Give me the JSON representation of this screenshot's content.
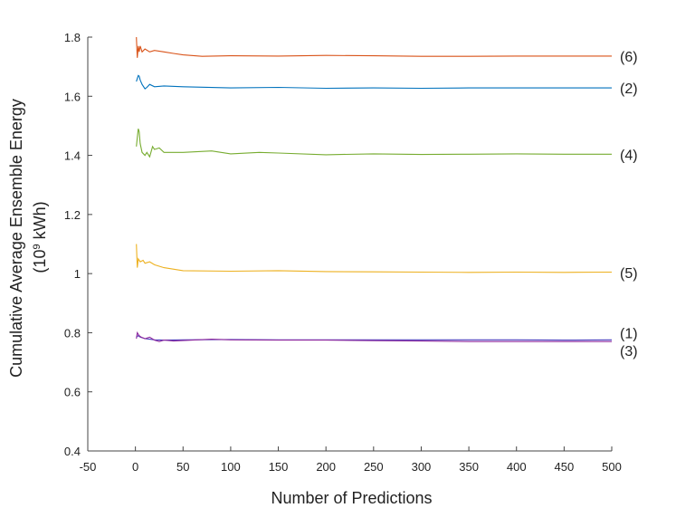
{
  "chart_data": {
    "type": "line",
    "title": "",
    "xlabel": "Number of Predictions",
    "ylabel_line1": "Cumulative Average Ensemble Energy",
    "ylabel_line2_prefix": "(10",
    "ylabel_line2_exp": "9",
    "ylabel_line2_suffix": " kWh)",
    "xlim": [
      -50,
      500
    ],
    "ylim": [
      0.4,
      1.8
    ],
    "x_ticks": [
      -50,
      0,
      50,
      100,
      150,
      200,
      250,
      300,
      350,
      400,
      450,
      500
    ],
    "x_tick_labels": [
      "-50",
      "0",
      "50",
      "100",
      "150",
      "200",
      "250",
      "300",
      "350",
      "400",
      "450",
      "500"
    ],
    "y_ticks": [
      0.4,
      0.6,
      0.8,
      1.0,
      1.2,
      1.4,
      1.6,
      1.8
    ],
    "y_tick_labels": [
      "0.4",
      "0.6",
      "0.8",
      "1",
      "1.2",
      "1.4",
      "1.6",
      "1.8"
    ],
    "grid": false,
    "legend": "none",
    "series": [
      {
        "name": "(6)",
        "color": "#d95319",
        "x": [
          1,
          2,
          3,
          4,
          5,
          7,
          10,
          15,
          20,
          30,
          40,
          50,
          70,
          100,
          150,
          200,
          250,
          300,
          350,
          400,
          450,
          500
        ],
        "y": [
          1.8,
          1.73,
          1.77,
          1.75,
          1.77,
          1.75,
          1.76,
          1.75,
          1.755,
          1.75,
          1.745,
          1.74,
          1.735,
          1.737,
          1.736,
          1.738,
          1.737,
          1.735,
          1.735,
          1.736,
          1.736,
          1.736
        ]
      },
      {
        "name": "(2)",
        "color": "#0072bd",
        "x": [
          1,
          2,
          3,
          4,
          5,
          7,
          10,
          12,
          15,
          20,
          30,
          50,
          100,
          150,
          200,
          250,
          300,
          350,
          400,
          450,
          500
        ],
        "y": [
          1.65,
          1.66,
          1.67,
          1.668,
          1.655,
          1.64,
          1.625,
          1.63,
          1.64,
          1.632,
          1.635,
          1.632,
          1.628,
          1.63,
          1.627,
          1.628,
          1.627,
          1.628,
          1.628,
          1.628,
          1.628
        ]
      },
      {
        "name": "(4)",
        "color": "#77ac30",
        "x": [
          1,
          2,
          3,
          4,
          5,
          7,
          10,
          12,
          15,
          18,
          20,
          25,
          30,
          50,
          80,
          100,
          130,
          150,
          200,
          250,
          300,
          350,
          400,
          450,
          500
        ],
        "y": [
          1.43,
          1.46,
          1.49,
          1.48,
          1.44,
          1.41,
          1.4,
          1.41,
          1.395,
          1.43,
          1.42,
          1.425,
          1.41,
          1.41,
          1.415,
          1.405,
          1.41,
          1.408,
          1.402,
          1.405,
          1.403,
          1.404,
          1.405,
          1.404,
          1.404
        ]
      },
      {
        "name": "(5)",
        "color": "#edb120",
        "x": [
          1,
          2,
          3,
          5,
          8,
          10,
          15,
          20,
          30,
          50,
          100,
          150,
          200,
          250,
          300,
          350,
          400,
          450,
          500
        ],
        "y": [
          1.1,
          1.02,
          1.05,
          1.04,
          1.045,
          1.035,
          1.04,
          1.03,
          1.02,
          1.01,
          1.008,
          1.01,
          1.007,
          1.006,
          1.005,
          1.004,
          1.005,
          1.004,
          1.005
        ]
      },
      {
        "name": "(1)",
        "color": "#4b3fbf",
        "x": [
          1,
          3,
          5,
          10,
          15,
          20,
          30,
          50,
          100,
          150,
          200,
          250,
          300,
          350,
          400,
          450,
          500
        ],
        "y": [
          0.785,
          0.79,
          0.785,
          0.78,
          0.778,
          0.776,
          0.775,
          0.776,
          0.777,
          0.776,
          0.776,
          0.776,
          0.776,
          0.776,
          0.776,
          0.775,
          0.776
        ]
      },
      {
        "name": "(3)",
        "color": "#8e2a9e",
        "x": [
          1,
          2,
          4,
          6,
          10,
          15,
          20,
          25,
          30,
          40,
          60,
          80,
          100,
          150,
          200,
          250,
          300,
          350,
          400,
          450,
          500
        ],
        "y": [
          0.78,
          0.8,
          0.79,
          0.785,
          0.78,
          0.785,
          0.775,
          0.77,
          0.775,
          0.772,
          0.775,
          0.778,
          0.776,
          0.775,
          0.775,
          0.773,
          0.772,
          0.77,
          0.77,
          0.77,
          0.77
        ]
      }
    ],
    "end_labels": [
      {
        "text": "(6)",
        "y": 1.735
      },
      {
        "text": "(2)",
        "y": 1.628
      },
      {
        "text": "(4)",
        "y": 1.404
      },
      {
        "text": "(5)",
        "y": 1.004
      },
      {
        "text": "(1)",
        "y": 0.8
      },
      {
        "text": "(3)",
        "y": 0.74
      }
    ]
  }
}
